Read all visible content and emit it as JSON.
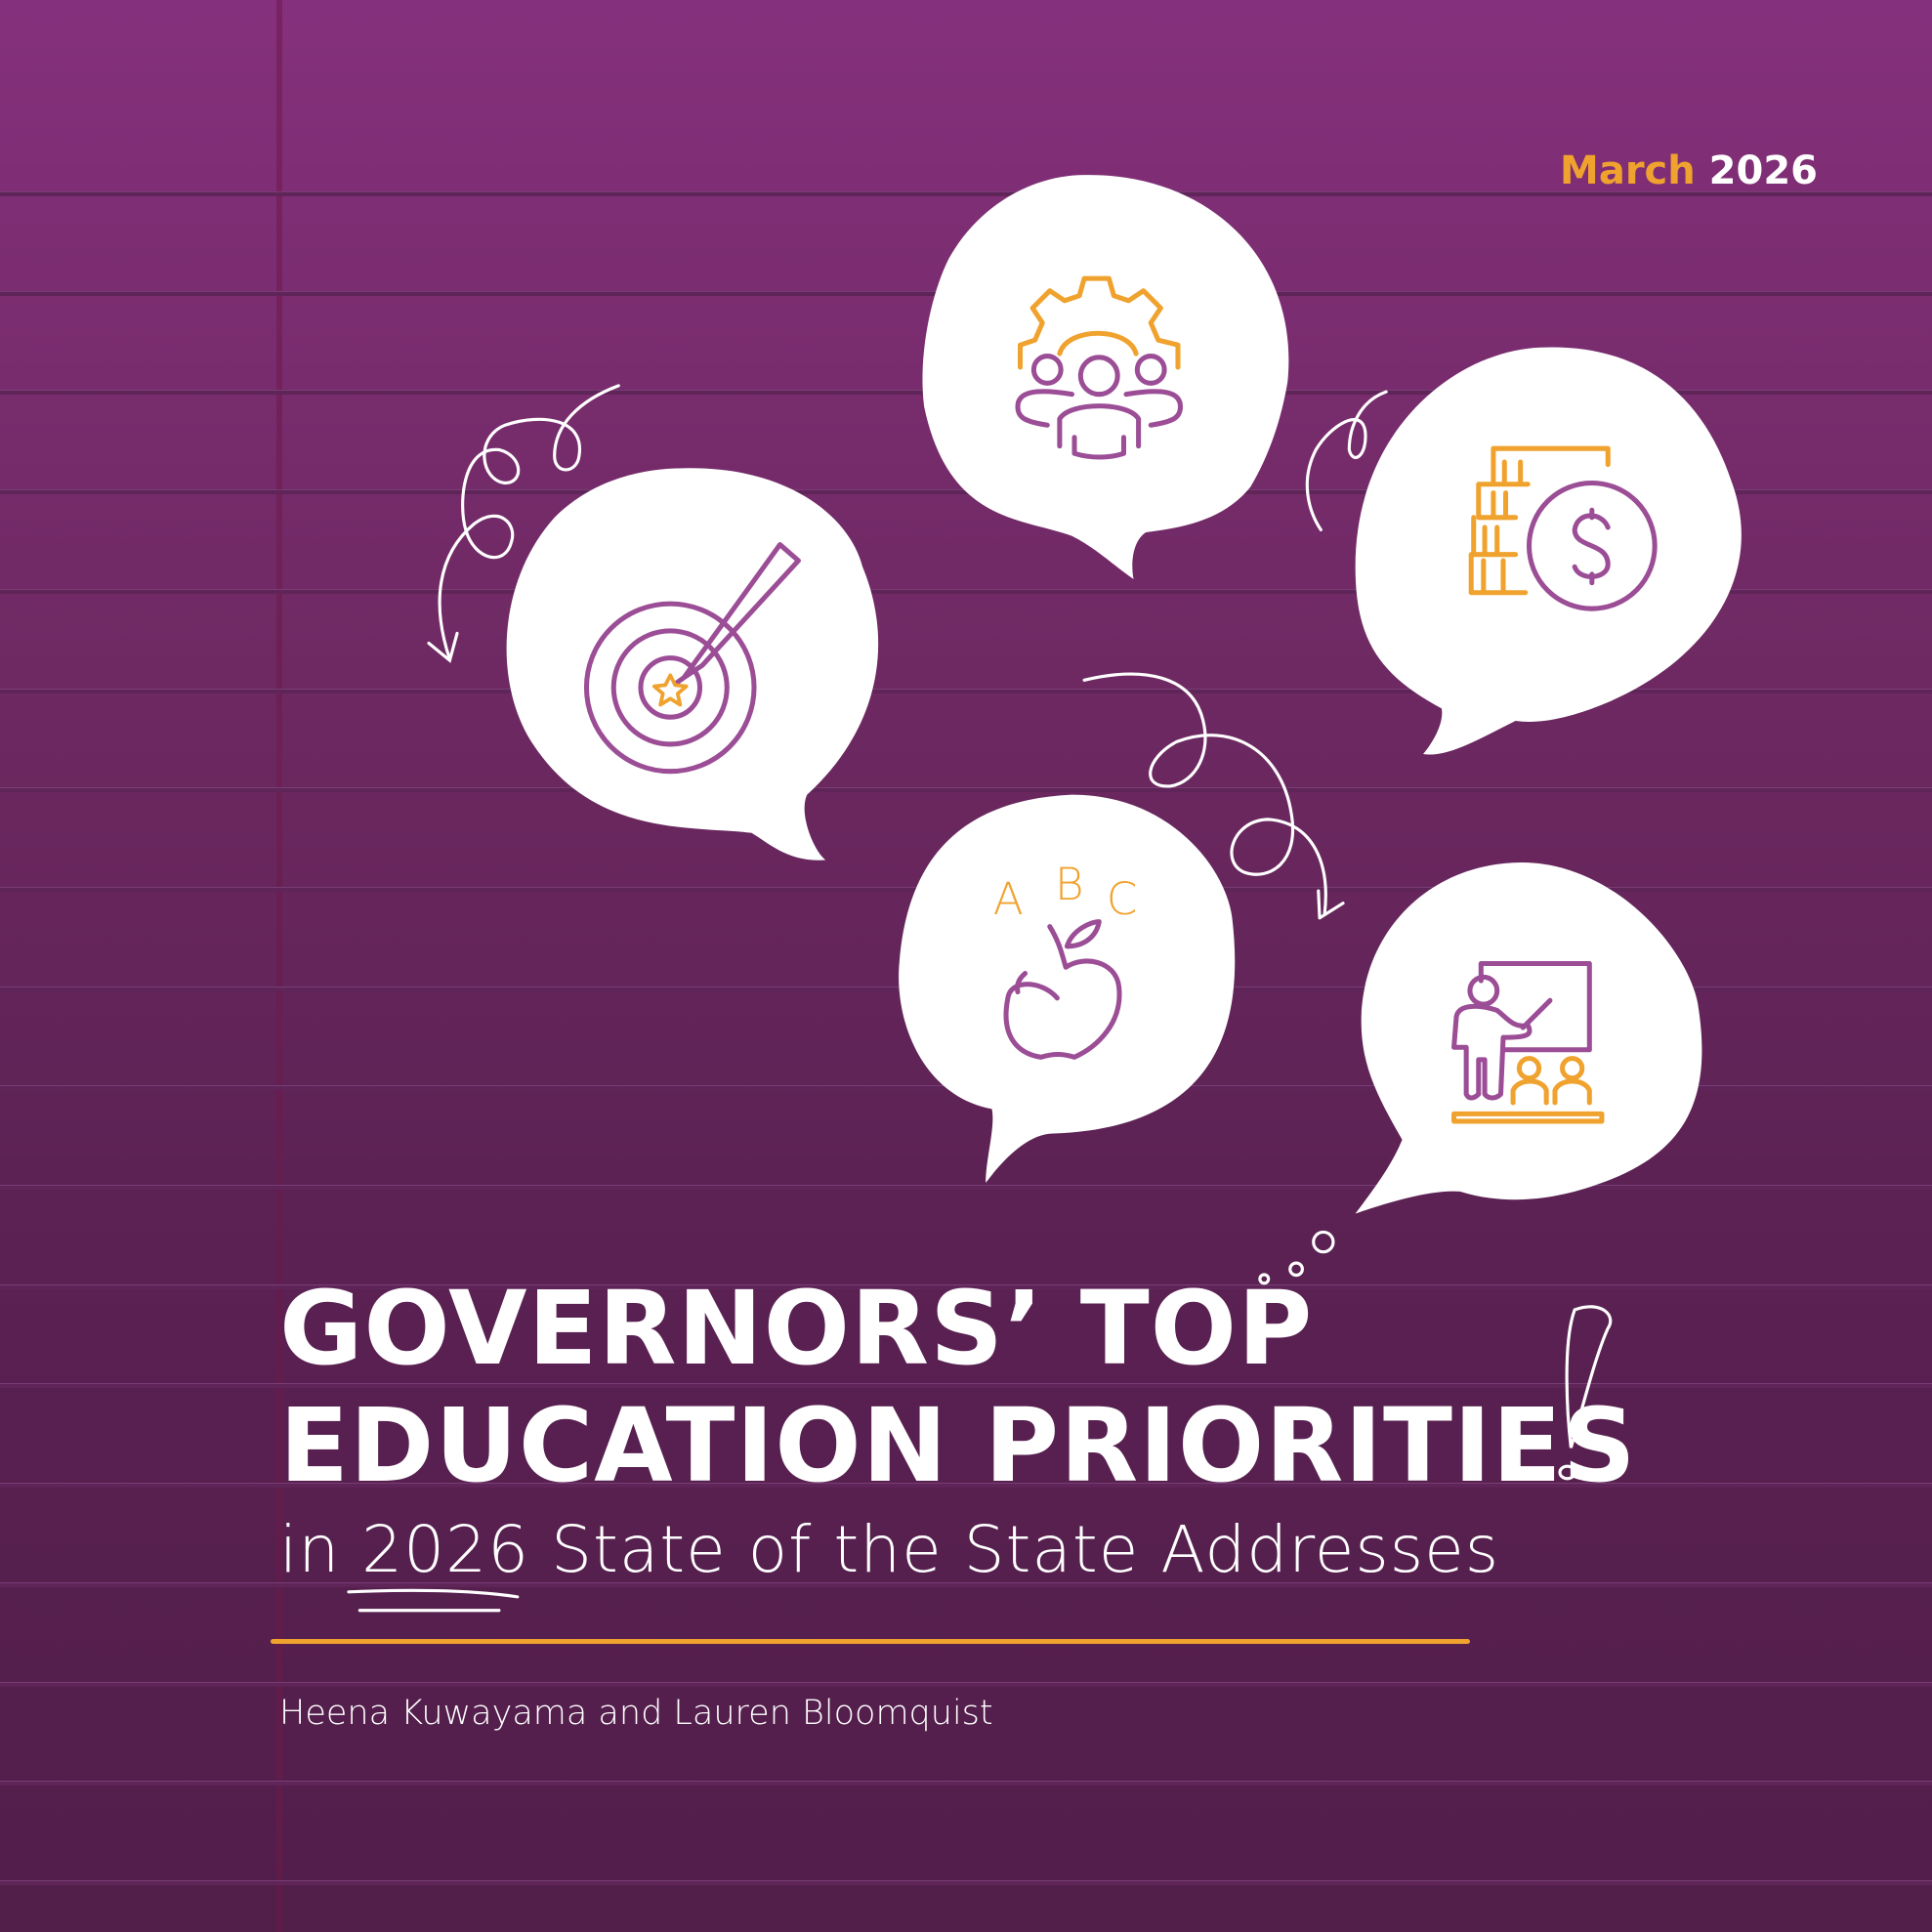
{
  "header": {
    "month": "March",
    "year": "2026"
  },
  "title": {
    "line1": "GOVERNORS’ TOP",
    "line2": "EDUCATION PRIORITIES"
  },
  "subtitle": "in 2026 State of the State Addresses",
  "authors": "Heena Kuwayama and Lauren Bloomquist",
  "icons": {
    "bubble1": "target-pencil-icon",
    "bubble2": "team-gear-icon",
    "bubble3": "money-coins-icon",
    "bubble4": "abc-apple-icon",
    "bubble5": "teacher-classroom-icon",
    "abc_letters": [
      "A",
      "B",
      "C"
    ]
  },
  "colors": {
    "background": "#85307c",
    "accent_orange": "#f0a22e",
    "icon_purple": "#9b4d96",
    "bubble": "#ffffff"
  }
}
